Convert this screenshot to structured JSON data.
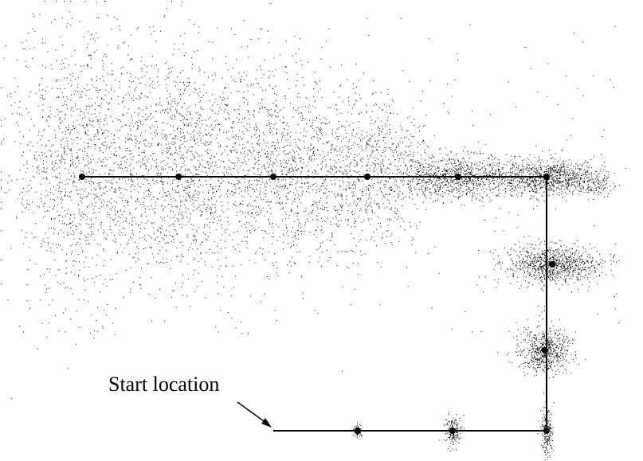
{
  "labels": {
    "start": "Start location"
  },
  "colors": {
    "background": "#ffffff",
    "ink": "#000000"
  },
  "path_nodes": [
    {
      "id": "start",
      "role": "start-location"
    },
    {
      "id": "n1"
    },
    {
      "id": "n2"
    },
    {
      "id": "n3"
    },
    {
      "id": "n4"
    },
    {
      "id": "n5"
    },
    {
      "id": "n6"
    },
    {
      "id": "n7"
    },
    {
      "id": "n8"
    },
    {
      "id": "n9"
    },
    {
      "id": "n10"
    },
    {
      "id": "n11"
    },
    {
      "id": "n12"
    }
  ]
}
